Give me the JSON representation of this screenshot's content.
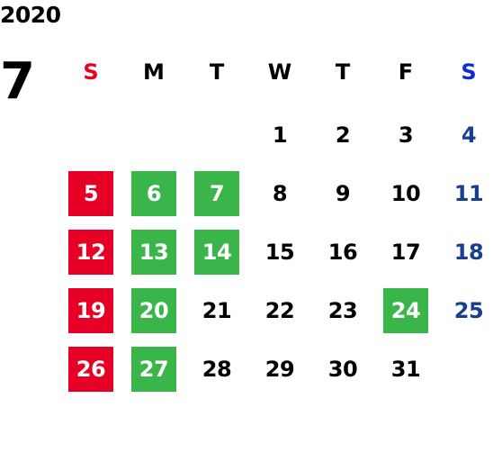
{
  "calendar": {
    "year": "2020",
    "month": "7",
    "weekdays": [
      {
        "label": "S",
        "color": "#e8001c"
      },
      {
        "label": "M",
        "color": "#000000"
      },
      {
        "label": "T",
        "color": "#000000"
      },
      {
        "label": "W",
        "color": "#000000"
      },
      {
        "label": "T",
        "color": "#000000"
      },
      {
        "label": "F",
        "color": "#000000"
      },
      {
        "label": "S",
        "color": "#0a2ecf"
      }
    ],
    "colors": {
      "sunday_fill": "#e60025",
      "holiday_fill": "#3ab54a",
      "saturday_text": "#1a3e8f",
      "default_text": "#000000"
    },
    "weeks": [
      [
        null,
        null,
        null,
        {
          "day": "1"
        },
        {
          "day": "2"
        },
        {
          "day": "3"
        },
        {
          "day": "4",
          "style": "saturday"
        }
      ],
      [
        {
          "day": "5",
          "style": "sunday"
        },
        {
          "day": "6",
          "style": "holiday"
        },
        {
          "day": "7",
          "style": "holiday"
        },
        {
          "day": "8"
        },
        {
          "day": "9"
        },
        {
          "day": "10"
        },
        {
          "day": "11",
          "style": "saturday"
        }
      ],
      [
        {
          "day": "12",
          "style": "sunday"
        },
        {
          "day": "13",
          "style": "holiday"
        },
        {
          "day": "14",
          "style": "holiday"
        },
        {
          "day": "15"
        },
        {
          "day": "16"
        },
        {
          "day": "17"
        },
        {
          "day": "18",
          "style": "saturday"
        }
      ],
      [
        {
          "day": "19",
          "style": "sunday"
        },
        {
          "day": "20",
          "style": "holiday"
        },
        {
          "day": "21"
        },
        {
          "day": "22"
        },
        {
          "day": "23"
        },
        {
          "day": "24",
          "style": "holiday"
        },
        {
          "day": "25",
          "style": "saturday"
        }
      ],
      [
        {
          "day": "26",
          "style": "sunday"
        },
        {
          "day": "27",
          "style": "holiday"
        },
        {
          "day": "28"
        },
        {
          "day": "29"
        },
        {
          "day": "30"
        },
        {
          "day": "31"
        },
        null
      ]
    ]
  }
}
